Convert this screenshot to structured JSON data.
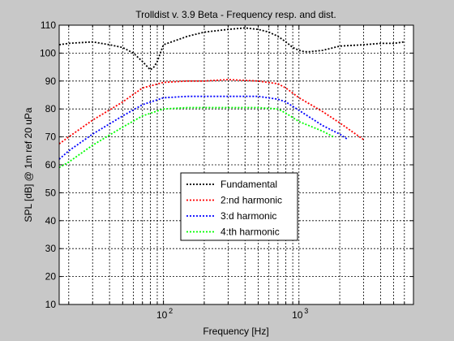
{
  "chart_data": {
    "type": "line",
    "title": "Trolldist v. 3.9 Beta - Frequency resp. and dist.",
    "xlabel": "Frequency [Hz]",
    "ylabel": "SPL [dB] @ 1m ref 20 uPa",
    "xscale": "log",
    "xlim": [
      17,
      7000
    ],
    "ylim": [
      10,
      110
    ],
    "grid": true,
    "legend_position": "center",
    "yticks": [
      "10",
      "20",
      "30",
      "40",
      "50",
      "60",
      "70",
      "80",
      "90",
      "100",
      "110"
    ],
    "xtick_labels": [
      {
        "base": "10",
        "exp": "2",
        "value": 100
      },
      {
        "base": "10",
        "exp": "3",
        "value": 1000
      }
    ],
    "series": [
      {
        "name": "Fundamental",
        "color": "#000000",
        "x": [
          17,
          20,
          30,
          40,
          50,
          60,
          70,
          80,
          85,
          90,
          100,
          150,
          200,
          300,
          400,
          500,
          600,
          700,
          800,
          900,
          1000,
          1100,
          1200,
          1500,
          2000,
          3000,
          4000,
          5000,
          6000
        ],
        "y": [
          103,
          103.5,
          104,
          103,
          102,
          100,
          97,
          94,
          95,
          97,
          103,
          106,
          107.5,
          108.5,
          109,
          108.5,
          107.5,
          106,
          104,
          102,
          101,
          100.5,
          100.5,
          101,
          102.5,
          103,
          103.5,
          103.5,
          104
        ]
      },
      {
        "name": "2:nd harmonic",
        "color": "#ff0000",
        "x": [
          17,
          20,
          30,
          50,
          70,
          100,
          150,
          200,
          300,
          500,
          700,
          800,
          1000,
          1500,
          2000,
          3000
        ],
        "y": [
          67.5,
          70,
          76,
          82.5,
          87.5,
          89.5,
          90,
          90,
          90.5,
          90,
          89,
          87.5,
          84,
          79,
          75,
          69
        ]
      },
      {
        "name": "3:d harmonic",
        "color": "#0000ff",
        "x": [
          17,
          20,
          30,
          50,
          70,
          100,
          150,
          200,
          300,
          500,
          700,
          800,
          1000,
          1500,
          2000,
          2300
        ],
        "y": [
          62,
          65,
          71,
          77.5,
          81.5,
          84,
          84.5,
          84.5,
          84.5,
          84.5,
          83.5,
          82.5,
          79.5,
          74,
          71,
          69
        ]
      },
      {
        "name": "4:th harmonic",
        "color": "#00ff00",
        "x": [
          17,
          20,
          30,
          50,
          70,
          100,
          150,
          200,
          300,
          500,
          700,
          800,
          1000,
          1500,
          1800
        ],
        "y": [
          59,
          61,
          67,
          73.5,
          77.5,
          80,
          80.5,
          80.5,
          80.5,
          80.5,
          80,
          78.5,
          75.5,
          72,
          70
        ]
      }
    ]
  }
}
